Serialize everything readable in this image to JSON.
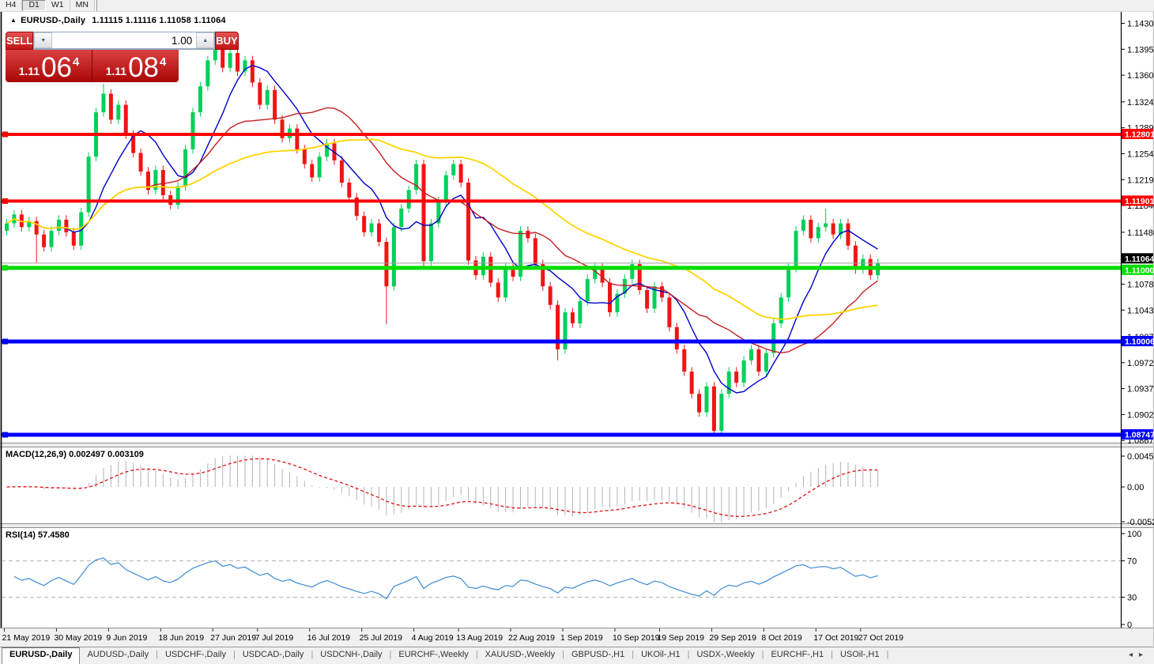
{
  "toolbar": {
    "timeframes": [
      {
        "label": "H4",
        "active": false
      },
      {
        "label": "D1",
        "active": true
      },
      {
        "label": "W1",
        "active": false
      },
      {
        "label": "MN",
        "active": false
      }
    ]
  },
  "chart": {
    "collapse_icon": "▲",
    "title": "EURUSD-,Daily",
    "ohlc_text": "1.11115 1.11116 1.11058 1.11064",
    "trade_panel": {
      "sell_label": "SELL",
      "buy_label": "BUY",
      "volume": "1.00",
      "vol_down_icon": "▼",
      "vol_up_icon": "▲",
      "bid_prefix": "1.11",
      "bid_big": "06",
      "bid_sup": "4",
      "ask_prefix": "1.11",
      "ask_big": "08",
      "ask_sup": "4"
    }
  },
  "chart_data": {
    "type": "candlestick",
    "symbol": "EURUSD-",
    "timeframe": "Daily",
    "colors": {
      "up": "#00d05a",
      "down": "#f01414",
      "macd_hist": "#b4b4b4",
      "macd_signal": "#e01010",
      "rsi_line": "#3d8bd5",
      "current_price_line": "#a0a0a0"
    },
    "price_axis_ticks": [
      "1.14300",
      "1.13950",
      "1.13600",
      "1.13240",
      "1.12890",
      "1.12540",
      "1.12190",
      "1.11840",
      "1.11480",
      "1.11120",
      "1.10780",
      "1.10430",
      "1.10070",
      "1.09720",
      "1.09370",
      "1.09020",
      "1.08670"
    ],
    "levels": [
      {
        "price": 1.12801,
        "label": "1.12801",
        "color": "#ff0000",
        "width": 4
      },
      {
        "price": 1.11901,
        "label": "1.11901",
        "color": "#ff0000",
        "width": 4
      },
      {
        "price": 1.11,
        "label": "1.11000",
        "color": "#00dd00",
        "width": 5
      },
      {
        "price": 1.10006,
        "label": "1.10006",
        "color": "#0000ff",
        "width": 5
      },
      {
        "price": 1.08747,
        "label": "1.08747",
        "color": "#0000ff",
        "width": 5
      }
    ],
    "current_price": {
      "value": 1.11064,
      "label": "1.11064"
    },
    "candles": {
      "first_open": 1.115,
      "closes": [
        1.116,
        1.1172,
        1.1155,
        1.1163,
        1.1145,
        1.1128,
        1.115,
        1.1165,
        1.1148,
        1.113,
        1.1175,
        1.125,
        1.131,
        1.1335,
        1.13,
        1.132,
        1.128,
        1.1255,
        1.123,
        1.1205,
        1.1232,
        1.1198,
        1.1185,
        1.121,
        1.126,
        1.131,
        1.1345,
        1.138,
        1.1405,
        1.137,
        1.139,
        1.1365,
        1.138,
        1.135,
        1.132,
        1.134,
        1.13,
        1.1275,
        1.1288,
        1.126,
        1.124,
        1.1222,
        1.125,
        1.1268,
        1.1245,
        1.1215,
        1.1195,
        1.117,
        1.1148,
        1.116,
        1.1135,
        1.1075,
        1.1155,
        1.118,
        1.1205,
        1.124,
        1.1109,
        1.116,
        1.119,
        1.1225,
        1.124,
        1.1215,
        1.111,
        1.109,
        1.1115,
        1.108,
        1.106,
        1.11,
        1.1088,
        1.115,
        1.114,
        1.1105,
        1.1075,
        1.105,
        1.099,
        1.104,
        1.1025,
        1.1055,
        1.1085,
        1.11,
        1.108,
        1.104,
        1.1065,
        1.1085,
        1.1105,
        1.107,
        1.1045,
        1.1075,
        1.106,
        1.102,
        1.099,
        1.096,
        1.093,
        1.0905,
        1.094,
        1.088,
        1.093,
        1.096,
        1.0945,
        1.0975,
        1.099,
        1.096,
        1.0985,
        1.1025,
        1.106,
        1.11,
        1.115,
        1.1165,
        1.114,
        1.1155,
        1.116,
        1.1145,
        1.116,
        1.113,
        1.1098,
        1.1112,
        1.109,
        1.11064
      ],
      "wicks": {
        "4": {
          "l": 1.1107
        },
        "13": {
          "h": 1.1348
        },
        "22": {
          "l": 1.1181
        },
        "28": {
          "h": 1.1412
        },
        "51": {
          "l": 1.1024
        },
        "56": {
          "l": 1.11
        },
        "74": {
          "l": 1.0975
        },
        "95": {
          "l": 1.0879
        },
        "110": {
          "h": 1.118
        }
      }
    },
    "date_labels": [
      {
        "text": "21 May 2019",
        "i": 0
      },
      {
        "text": "30 May 2019",
        "i": 7
      },
      {
        "text": "9 Jun 2019",
        "i": 14
      },
      {
        "text": "18 Jun 2019",
        "i": 21
      },
      {
        "text": "27 Jun 2019",
        "i": 28
      },
      {
        "text": "7 Jul 2019",
        "i": 34
      },
      {
        "text": "16 Jul 2019",
        "i": 41
      },
      {
        "text": "25 Jul 2019",
        "i": 48
      },
      {
        "text": "4 Aug 2019",
        "i": 55
      },
      {
        "text": "13 Aug 2019",
        "i": 61
      },
      {
        "text": "22 Aug 2019",
        "i": 68
      },
      {
        "text": "1 Sep 2019",
        "i": 75
      },
      {
        "text": "10 Sep 2019",
        "i": 82
      },
      {
        "text": "19 Sep 2019",
        "i": 88
      },
      {
        "text": "29 Sep 2019",
        "i": 95
      },
      {
        "text": "8 Oct 2019",
        "i": 102
      },
      {
        "text": "17 Oct 2019",
        "i": 109
      },
      {
        "text": "27 Oct 2019",
        "i": 115
      }
    ],
    "moving_averages": [
      {
        "period": 8,
        "color": "#0000c8"
      },
      {
        "period": 20,
        "color": "#c42020"
      },
      {
        "period": 40,
        "color": "#ffd400"
      }
    ],
    "macd": {
      "label": "MACD(12,26,9)",
      "values_text": "0.002497 0.003109",
      "fast": 12,
      "slow": 26,
      "signal": 9,
      "axis_labels": [
        "0.004536",
        "0.00",
        "-0.005205"
      ]
    },
    "rsi": {
      "label": "RSI(14)",
      "value_text": "57.4580",
      "period": 14,
      "axis_labels": [
        "100",
        "70",
        "30",
        "0"
      ],
      "bands": [
        70,
        30
      ]
    }
  },
  "tabs": {
    "items": [
      {
        "label": "EURUSD-,Daily",
        "active": true
      },
      {
        "label": "AUDUSD-,Daily",
        "active": false
      },
      {
        "label": "USDCHF-,Daily",
        "active": false
      },
      {
        "label": "USDCAD-,Daily",
        "active": false
      },
      {
        "label": "USDCNH-,Daily",
        "active": false
      },
      {
        "label": "EURCHF-,Weekly",
        "active": false
      },
      {
        "label": "XAUUSD-,Weekly",
        "active": false
      },
      {
        "label": "GBPUSD-,H1",
        "active": false
      },
      {
        "label": "UKOil-,H1",
        "active": false
      },
      {
        "label": "USDX-,Weekly",
        "active": false
      },
      {
        "label": "EURCHF-,H1",
        "active": false
      },
      {
        "label": "USOil-,H1",
        "active": false
      }
    ],
    "nav_left": "◂",
    "nav_right": "▸"
  }
}
